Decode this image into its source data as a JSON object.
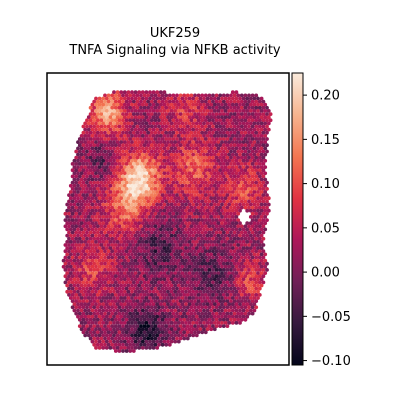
{
  "chart_data": {
    "type": "heatmap",
    "title": "UKF259",
    "subtitle": "TNFA Signaling via NFKB activity",
    "xlabel": "",
    "ylabel": "",
    "colorbar": {
      "vmin": -0.105,
      "vmax": 0.225,
      "ticks": [
        0.2,
        0.15,
        0.1,
        0.05,
        0.0,
        -0.05,
        -0.1
      ],
      "tick_labels": [
        "0.20",
        "0.15",
        "0.10",
        "0.05",
        "0.00",
        "−0.05",
        "−0.10"
      ],
      "colormap": "rocket",
      "colormap_stops": [
        "#03051a",
        "#35193e",
        "#701f57",
        "#ad1759",
        "#e13342",
        "#f37651",
        "#f6b48f",
        "#faebdd"
      ]
    },
    "grid": false,
    "spot_map": {
      "description_shape": "hexagonal spot grid of tissue section",
      "hot_regions": [
        {
          "cx": 0.37,
          "cy": 0.34,
          "r": 0.09,
          "value": 0.21
        },
        {
          "cx": 0.22,
          "cy": 0.1,
          "r": 0.08,
          "value": 0.17
        },
        {
          "cx": 0.3,
          "cy": 0.45,
          "r": 0.1,
          "value": 0.12
        },
        {
          "cx": 0.62,
          "cy": 0.3,
          "r": 0.1,
          "value": 0.11
        },
        {
          "cx": 0.85,
          "cy": 0.38,
          "r": 0.08,
          "value": 0.1
        },
        {
          "cx": 0.15,
          "cy": 0.68,
          "r": 0.08,
          "value": 0.09
        },
        {
          "cx": 0.88,
          "cy": 0.72,
          "r": 0.07,
          "value": 0.09
        },
        {
          "cx": 0.58,
          "cy": 0.08,
          "r": 0.08,
          "value": 0.08
        }
      ],
      "cold_regions": [
        {
          "cx": 0.4,
          "cy": 0.9,
          "r": 0.08,
          "value": -0.08
        },
        {
          "cx": 0.45,
          "cy": 0.6,
          "r": 0.1,
          "value": -0.04
        },
        {
          "cx": 0.7,
          "cy": 0.7,
          "r": 0.1,
          "value": -0.03
        },
        {
          "cx": 0.2,
          "cy": 0.28,
          "r": 0.07,
          "value": -0.03
        }
      ],
      "baseline_value": 0.02
    }
  }
}
